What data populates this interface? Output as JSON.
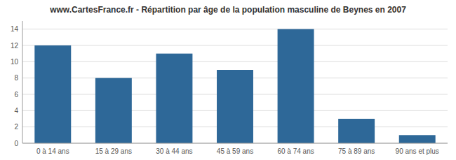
{
  "chart_data": {
    "type": "bar",
    "title": "www.CartesFrance.fr - Répartition par âge de la population masculine de Beynes en 2007",
    "categories": [
      "0 à 14 ans",
      "15 à 29 ans",
      "30 à 44 ans",
      "45 à 59 ans",
      "60 à 74 ans",
      "75 à 89 ans",
      "90 ans et plus"
    ],
    "values": [
      12,
      8,
      11,
      9,
      14,
      3,
      1
    ],
    "color": "#2e6898",
    "ylim": [
      0,
      15
    ],
    "yticks": [
      0,
      2,
      4,
      6,
      8,
      10,
      12,
      14
    ],
    "grid": true
  }
}
